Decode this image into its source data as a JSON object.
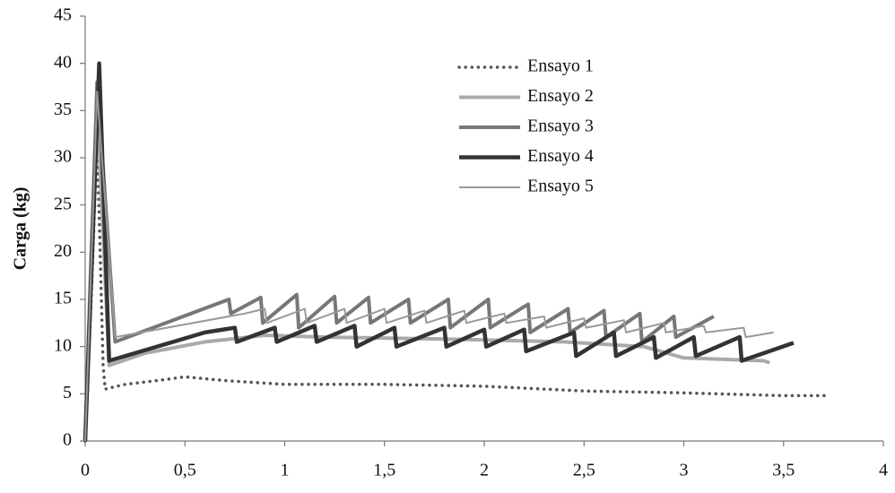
{
  "chart_data": {
    "type": "line",
    "y_label": "Carga (kg)",
    "xlim": [
      0,
      4
    ],
    "xticks": [
      0,
      {
        "value": 0.5,
        "label": "0,5"
      },
      1,
      {
        "value": 1.5,
        "label": "1,5"
      },
      2,
      {
        "value": 2.5,
        "label": "2,5"
      },
      3,
      {
        "value": 3.5,
        "label": "3,5"
      },
      4
    ],
    "ylim": [
      0,
      45
    ],
    "yticks": [
      0,
      5,
      10,
      15,
      20,
      25,
      30,
      35,
      40,
      45
    ],
    "grid": false,
    "legend": "upper center",
    "series": [
      {
        "name": "Ensayo 1",
        "color": "#555555",
        "width": 3.5,
        "style": "dotted",
        "x": [
          0,
          0.03,
          0.06,
          0.09,
          0.1,
          0.2,
          0.4,
          0.5,
          0.7,
          1,
          1.5,
          2,
          2.5,
          3,
          3.5,
          3.73
        ],
        "values": [
          0,
          15,
          32,
          8,
          5.5,
          6,
          6.5,
          6.8,
          6.4,
          6,
          6,
          5.8,
          5.3,
          5.1,
          4.8,
          4.8
        ]
      },
      {
        "name": "Ensayo 2",
        "color": "#aaaaaa",
        "width": 4,
        "style": "solid",
        "x": [
          0,
          0.03,
          0.06,
          0.12,
          0.3,
          0.6,
          0.9,
          1.2,
          1.8,
          2.4,
          2.8,
          3,
          3.4,
          3.43
        ],
        "values": [
          0,
          20,
          36,
          8,
          9.3,
          10.5,
          11.2,
          11,
          10.8,
          10.5,
          10,
          8.8,
          8.5,
          8.3
        ]
      },
      {
        "name": "Ensayo 3",
        "color": "#777777",
        "width": 4,
        "style": "solid",
        "x": [
          0,
          0.06,
          0.15,
          0.72,
          0.73,
          0.88,
          0.89,
          1.06,
          1.07,
          1.25,
          1.26,
          1.42,
          1.43,
          1.62,
          1.63,
          1.82,
          1.83,
          2.02,
          2.03,
          2.22,
          2.23,
          2.42,
          2.43,
          2.6,
          2.61,
          2.78,
          2.79,
          2.95,
          2.96,
          3.15
        ],
        "values": [
          0,
          38,
          10.5,
          15,
          13.5,
          15.2,
          12.5,
          15.5,
          12,
          15.3,
          12.5,
          15.2,
          12.5,
          15,
          12.5,
          15,
          12,
          15,
          12,
          14.5,
          11.5,
          14,
          11.5,
          13.8,
          11,
          13.5,
          10.5,
          13.2,
          11,
          13.2
        ]
      },
      {
        "name": "Ensayo 4",
        "color": "#333333",
        "width": 4.5,
        "style": "solid",
        "x": [
          0,
          0.07,
          0.12,
          0.6,
          0.75,
          0.76,
          0.95,
          0.96,
          1.15,
          1.16,
          1.35,
          1.36,
          1.55,
          1.56,
          1.8,
          1.81,
          2,
          2.01,
          2.2,
          2.21,
          2.45,
          2.46,
          2.65,
          2.66,
          2.85,
          2.86,
          3.05,
          3.06,
          3.28,
          3.29,
          3.55
        ],
        "values": [
          0,
          40,
          8.5,
          11.5,
          12,
          10.5,
          12,
          10.5,
          12.2,
          10.5,
          12.2,
          10,
          12,
          10,
          12,
          10,
          11.8,
          10,
          11.8,
          9.5,
          11.5,
          9,
          11.5,
          9,
          11,
          8.8,
          11,
          9,
          11,
          8.5,
          10.4
        ]
      },
      {
        "name": "Ensayo 5",
        "color": "#999999",
        "width": 2,
        "style": "solid",
        "x": [
          0,
          0.06,
          0.15,
          0.8,
          0.9,
          0.91,
          1.1,
          1.11,
          1.3,
          1.31,
          1.5,
          1.51,
          1.7,
          1.71,
          1.9,
          1.91,
          2.1,
          2.11,
          2.3,
          2.31,
          2.5,
          2.51,
          2.7,
          2.71,
          2.9,
          2.91,
          3.1,
          3.11,
          3.3,
          3.31,
          3.45
        ],
        "values": [
          0,
          37,
          11,
          13.5,
          14,
          12.5,
          14,
          12.5,
          14,
          12.5,
          14,
          12.5,
          13.8,
          12.5,
          13.8,
          12.5,
          13.5,
          12.5,
          13.2,
          12,
          13,
          12,
          12.8,
          11.5,
          12.5,
          11.5,
          12.2,
          11.5,
          12,
          11,
          11.5
        ]
      }
    ]
  }
}
